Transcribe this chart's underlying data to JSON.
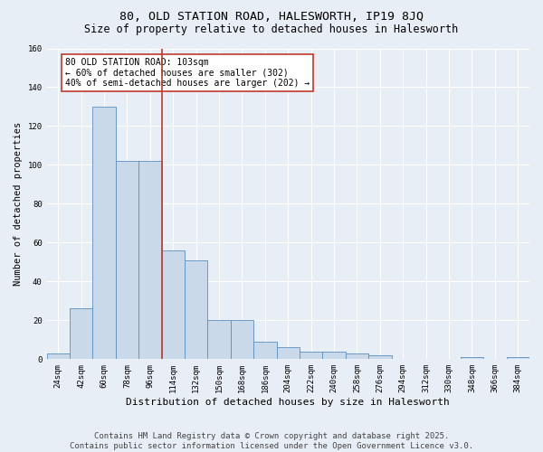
{
  "title": "80, OLD STATION ROAD, HALESWORTH, IP19 8JQ",
  "subtitle": "Size of property relative to detached houses in Halesworth",
  "xlabel": "Distribution of detached houses by size in Halesworth",
  "ylabel": "Number of detached properties",
  "categories": [
    "24sqm",
    "42sqm",
    "60sqm",
    "78sqm",
    "96sqm",
    "114sqm",
    "132sqm",
    "150sqm",
    "168sqm",
    "186sqm",
    "204sqm",
    "222sqm",
    "240sqm",
    "258sqm",
    "276sqm",
    "294sqm",
    "312sqm",
    "330sqm",
    "348sqm",
    "366sqm",
    "384sqm"
  ],
  "values": [
    3,
    26,
    130,
    102,
    102,
    56,
    51,
    20,
    20,
    9,
    6,
    4,
    4,
    3,
    2,
    0,
    0,
    0,
    1,
    0,
    1
  ],
  "bar_color": "#c9d9ea",
  "bar_edge_color": "#5a8fc0",
  "vline_x_index": 4.5,
  "vline_color": "#c0392b",
  "annotation_text": "80 OLD STATION ROAD: 103sqm\n← 60% of detached houses are smaller (302)\n40% of semi-detached houses are larger (202) →",
  "annotation_box_color": "#ffffff",
  "annotation_box_edge": "#c0392b",
  "ylim": [
    0,
    160
  ],
  "yticks": [
    0,
    20,
    40,
    60,
    80,
    100,
    120,
    140,
    160
  ],
  "bg_color": "#e8eef5",
  "plot_bg_color": "#e8eef5",
  "footer_line1": "Contains HM Land Registry data © Crown copyright and database right 2025.",
  "footer_line2": "Contains public sector information licensed under the Open Government Licence v3.0.",
  "title_fontsize": 9.5,
  "subtitle_fontsize": 8.5,
  "xlabel_fontsize": 8,
  "ylabel_fontsize": 7.5,
  "tick_fontsize": 6.5,
  "annotation_fontsize": 7,
  "footer_fontsize": 6.5
}
